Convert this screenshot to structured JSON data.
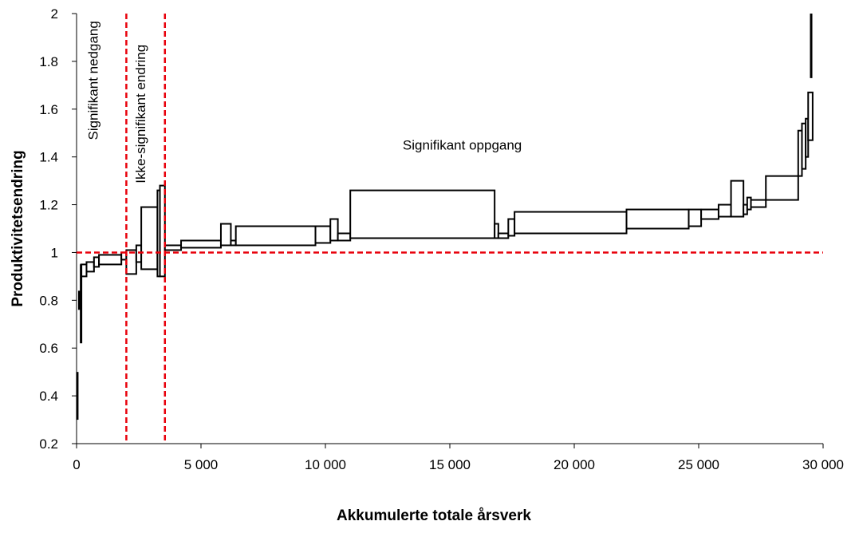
{
  "chart_data": {
    "type": "bar",
    "title": "",
    "xlabel": "Akkumulerte totale årsverk",
    "ylabel": "Produktivitetsendring",
    "xlim": [
      0,
      30000
    ],
    "ylim": [
      0.2,
      2.0
    ],
    "x_ticks": [
      0,
      5000,
      10000,
      15000,
      20000,
      25000,
      30000
    ],
    "x_tick_labels": [
      "0",
      "5 000",
      "10 000",
      "15 000",
      "20 000",
      "25 000",
      "30 000"
    ],
    "y_ticks": [
      0.2,
      0.4,
      0.6,
      0.8,
      1.0,
      1.2,
      1.4,
      1.6,
      1.8,
      2.0
    ],
    "y_tick_labels": [
      "0.2",
      "0.4",
      "0.6",
      "0.8",
      "1",
      "1.2",
      "1.4",
      "1.6",
      "1.8",
      "2"
    ],
    "grid": false,
    "legend": "none",
    "reference_lines": {
      "horizontal_y": 1.0,
      "vertical_x": [
        2000,
        3550
      ],
      "color": "#e8000b"
    },
    "region_labels": [
      {
        "text": "Signifikant nedgang",
        "x": 850,
        "y": 1.72,
        "rotated": true
      },
      {
        "text": "Ikke-signifikant endring",
        "x": 2750,
        "y": 1.58,
        "rotated": true
      },
      {
        "text": "Signifikant oppgang",
        "x": 15500,
        "y": 1.43,
        "rotated": false
      }
    ],
    "spikes": [
      {
        "x": 30,
        "y_low": 0.3,
        "y_high": 0.5
      },
      {
        "x": 110,
        "y_low": 0.76,
        "y_high": 0.84
      },
      {
        "x": 180,
        "y_low": 0.62,
        "y_high": 0.95
      },
      {
        "x": 29520,
        "y_low": 1.73,
        "y_high": 2.0
      }
    ],
    "boxes": [
      {
        "x0": 180,
        "x1": 400,
        "y_low": 0.9,
        "y_high": 0.95
      },
      {
        "x0": 400,
        "x1": 700,
        "y_low": 0.92,
        "y_high": 0.96
      },
      {
        "x0": 700,
        "x1": 900,
        "y_low": 0.94,
        "y_high": 0.98
      },
      {
        "x0": 900,
        "x1": 1800,
        "y_low": 0.95,
        "y_high": 0.99
      },
      {
        "x0": 1800,
        "x1": 2000,
        "y_low": 0.97,
        "y_high": 1.0
      },
      {
        "x0": 2000,
        "x1": 2400,
        "y_low": 0.91,
        "y_high": 1.01
      },
      {
        "x0": 2400,
        "x1": 2600,
        "y_low": 0.96,
        "y_high": 1.03
      },
      {
        "x0": 2600,
        "x1": 3250,
        "y_low": 0.93,
        "y_high": 1.19
      },
      {
        "x0": 3250,
        "x1": 3350,
        "y_low": 0.9,
        "y_high": 1.26
      },
      {
        "x0": 3350,
        "x1": 3550,
        "y_low": 0.9,
        "y_high": 1.28
      },
      {
        "x0": 3550,
        "x1": 4200,
        "y_low": 1.01,
        "y_high": 1.03
      },
      {
        "x0": 4200,
        "x1": 5800,
        "y_low": 1.02,
        "y_high": 1.05
      },
      {
        "x0": 5800,
        "x1": 6200,
        "y_low": 1.03,
        "y_high": 1.12
      },
      {
        "x0": 6200,
        "x1": 6400,
        "y_low": 1.03,
        "y_high": 1.05
      },
      {
        "x0": 6400,
        "x1": 9600,
        "y_low": 1.03,
        "y_high": 1.11
      },
      {
        "x0": 9600,
        "x1": 10200,
        "y_low": 1.04,
        "y_high": 1.11
      },
      {
        "x0": 10200,
        "x1": 10500,
        "y_low": 1.05,
        "y_high": 1.14
      },
      {
        "x0": 10500,
        "x1": 11000,
        "y_low": 1.05,
        "y_high": 1.08
      },
      {
        "x0": 11000,
        "x1": 16800,
        "y_low": 1.06,
        "y_high": 1.26
      },
      {
        "x0": 16800,
        "x1": 16950,
        "y_low": 1.06,
        "y_high": 1.12
      },
      {
        "x0": 16950,
        "x1": 17350,
        "y_low": 1.06,
        "y_high": 1.08
      },
      {
        "x0": 17350,
        "x1": 17600,
        "y_low": 1.07,
        "y_high": 1.14
      },
      {
        "x0": 17600,
        "x1": 22100,
        "y_low": 1.08,
        "y_high": 1.17
      },
      {
        "x0": 22100,
        "x1": 24600,
        "y_low": 1.1,
        "y_high": 1.18
      },
      {
        "x0": 24600,
        "x1": 25100,
        "y_low": 1.11,
        "y_high": 1.18
      },
      {
        "x0": 25100,
        "x1": 25800,
        "y_low": 1.14,
        "y_high": 1.18
      },
      {
        "x0": 25800,
        "x1": 26300,
        "y_low": 1.15,
        "y_high": 1.2
      },
      {
        "x0": 26300,
        "x1": 26800,
        "y_low": 1.15,
        "y_high": 1.3
      },
      {
        "x0": 26800,
        "x1": 26950,
        "y_low": 1.16,
        "y_high": 1.2
      },
      {
        "x0": 26950,
        "x1": 27100,
        "y_low": 1.18,
        "y_high": 1.23
      },
      {
        "x0": 27100,
        "x1": 27700,
        "y_low": 1.19,
        "y_high": 1.22
      },
      {
        "x0": 27700,
        "x1": 29000,
        "y_low": 1.22,
        "y_high": 1.32
      },
      {
        "x0": 29000,
        "x1": 29150,
        "y_low": 1.32,
        "y_high": 1.51
      },
      {
        "x0": 29150,
        "x1": 29300,
        "y_low": 1.35,
        "y_high": 1.54
      },
      {
        "x0": 29300,
        "x1": 29400,
        "y_low": 1.4,
        "y_high": 1.56
      },
      {
        "x0": 29400,
        "x1": 29580,
        "y_low": 1.47,
        "y_high": 1.67
      }
    ]
  }
}
